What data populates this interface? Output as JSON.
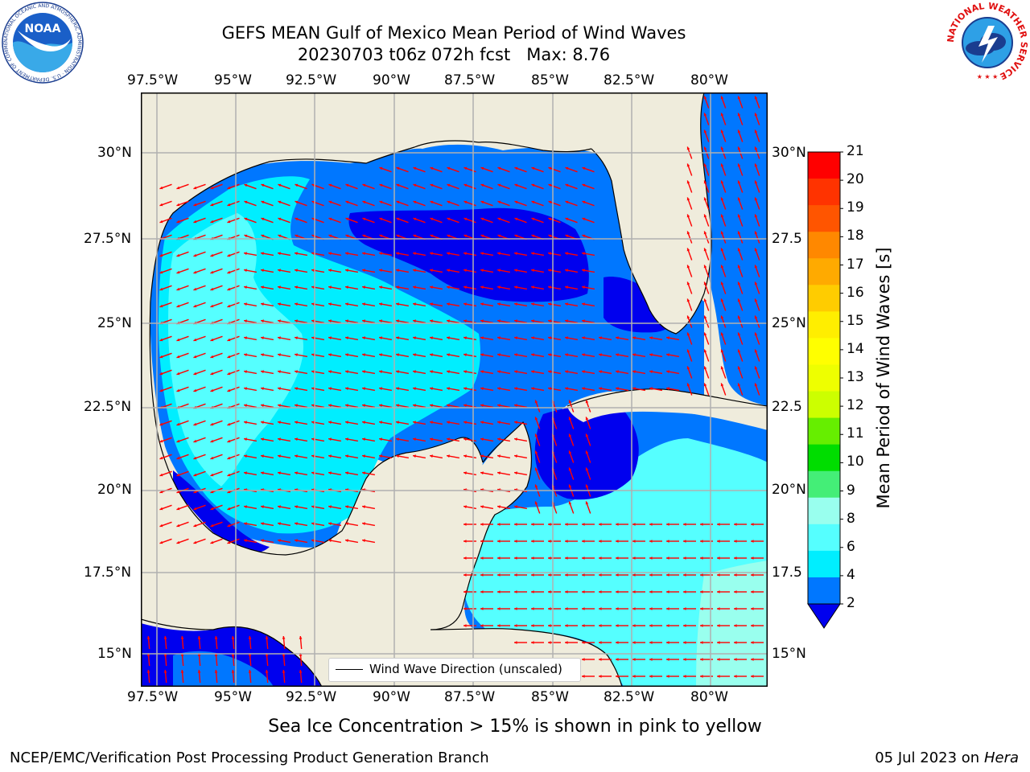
{
  "title": {
    "line1": "GEFS MEAN Gulf of Mexico Mean Period of Wind Waves",
    "line2": "20230703 t06z 072h fcst   Max: 8.76"
  },
  "map": {
    "lon_ticks": [
      "97.5°W",
      "95°W",
      "92.5°W",
      "90°W",
      "87.5°W",
      "85°W",
      "82.5°W",
      "80°W"
    ],
    "lat_ticks_left": [
      "30°N",
      "27.5°N",
      "25°N",
      "22.5°N",
      "20°N",
      "17.5°N",
      "15°N"
    ],
    "lat_ticks_right": [
      "30°N",
      "27.5",
      "25°N",
      "22.5",
      "20°N",
      "17.5",
      "15°N"
    ],
    "land_color": "#efecdc",
    "legend_label": "Wind Wave Direction (unscaled)"
  },
  "colorbar": {
    "label": "Mean Period of Wind Waves [s]",
    "ticks": [
      "21",
      "20",
      "19",
      "18",
      "17",
      "16",
      "15",
      "14",
      "13",
      "12",
      "11",
      "10",
      "9",
      "8",
      "6",
      "4",
      "2"
    ],
    "colors": [
      "#ff0000",
      "#ff3300",
      "#ff5500",
      "#ff8800",
      "#ffaa00",
      "#ffcc00",
      "#ffee00",
      "#ffff00",
      "#eeff00",
      "#ccff00",
      "#66ee00",
      "#00dd00",
      "#44ee77",
      "#99ffee",
      "#55ffff",
      "#00eeff",
      "#0077ff"
    ],
    "extend_color": "#0000ee"
  },
  "subtitle": "Sea Ice Concentration > 15% is shown in pink to yellow",
  "footer": {
    "left": "NCEP/EMC/Verification Post Processing Product Generation Branch",
    "right_date": "05 Jul 2023 on ",
    "right_host": "Hera"
  },
  "logos": {
    "noaa_text": "NOAA",
    "noaa_ring": "NATIONAL OCEANIC AND ATMOSPHERIC ADMINISTRATION · U.S. DEPARTMENT OF COMMERCE",
    "nws_ring": "NATIONAL WEATHER SERVICE"
  }
}
